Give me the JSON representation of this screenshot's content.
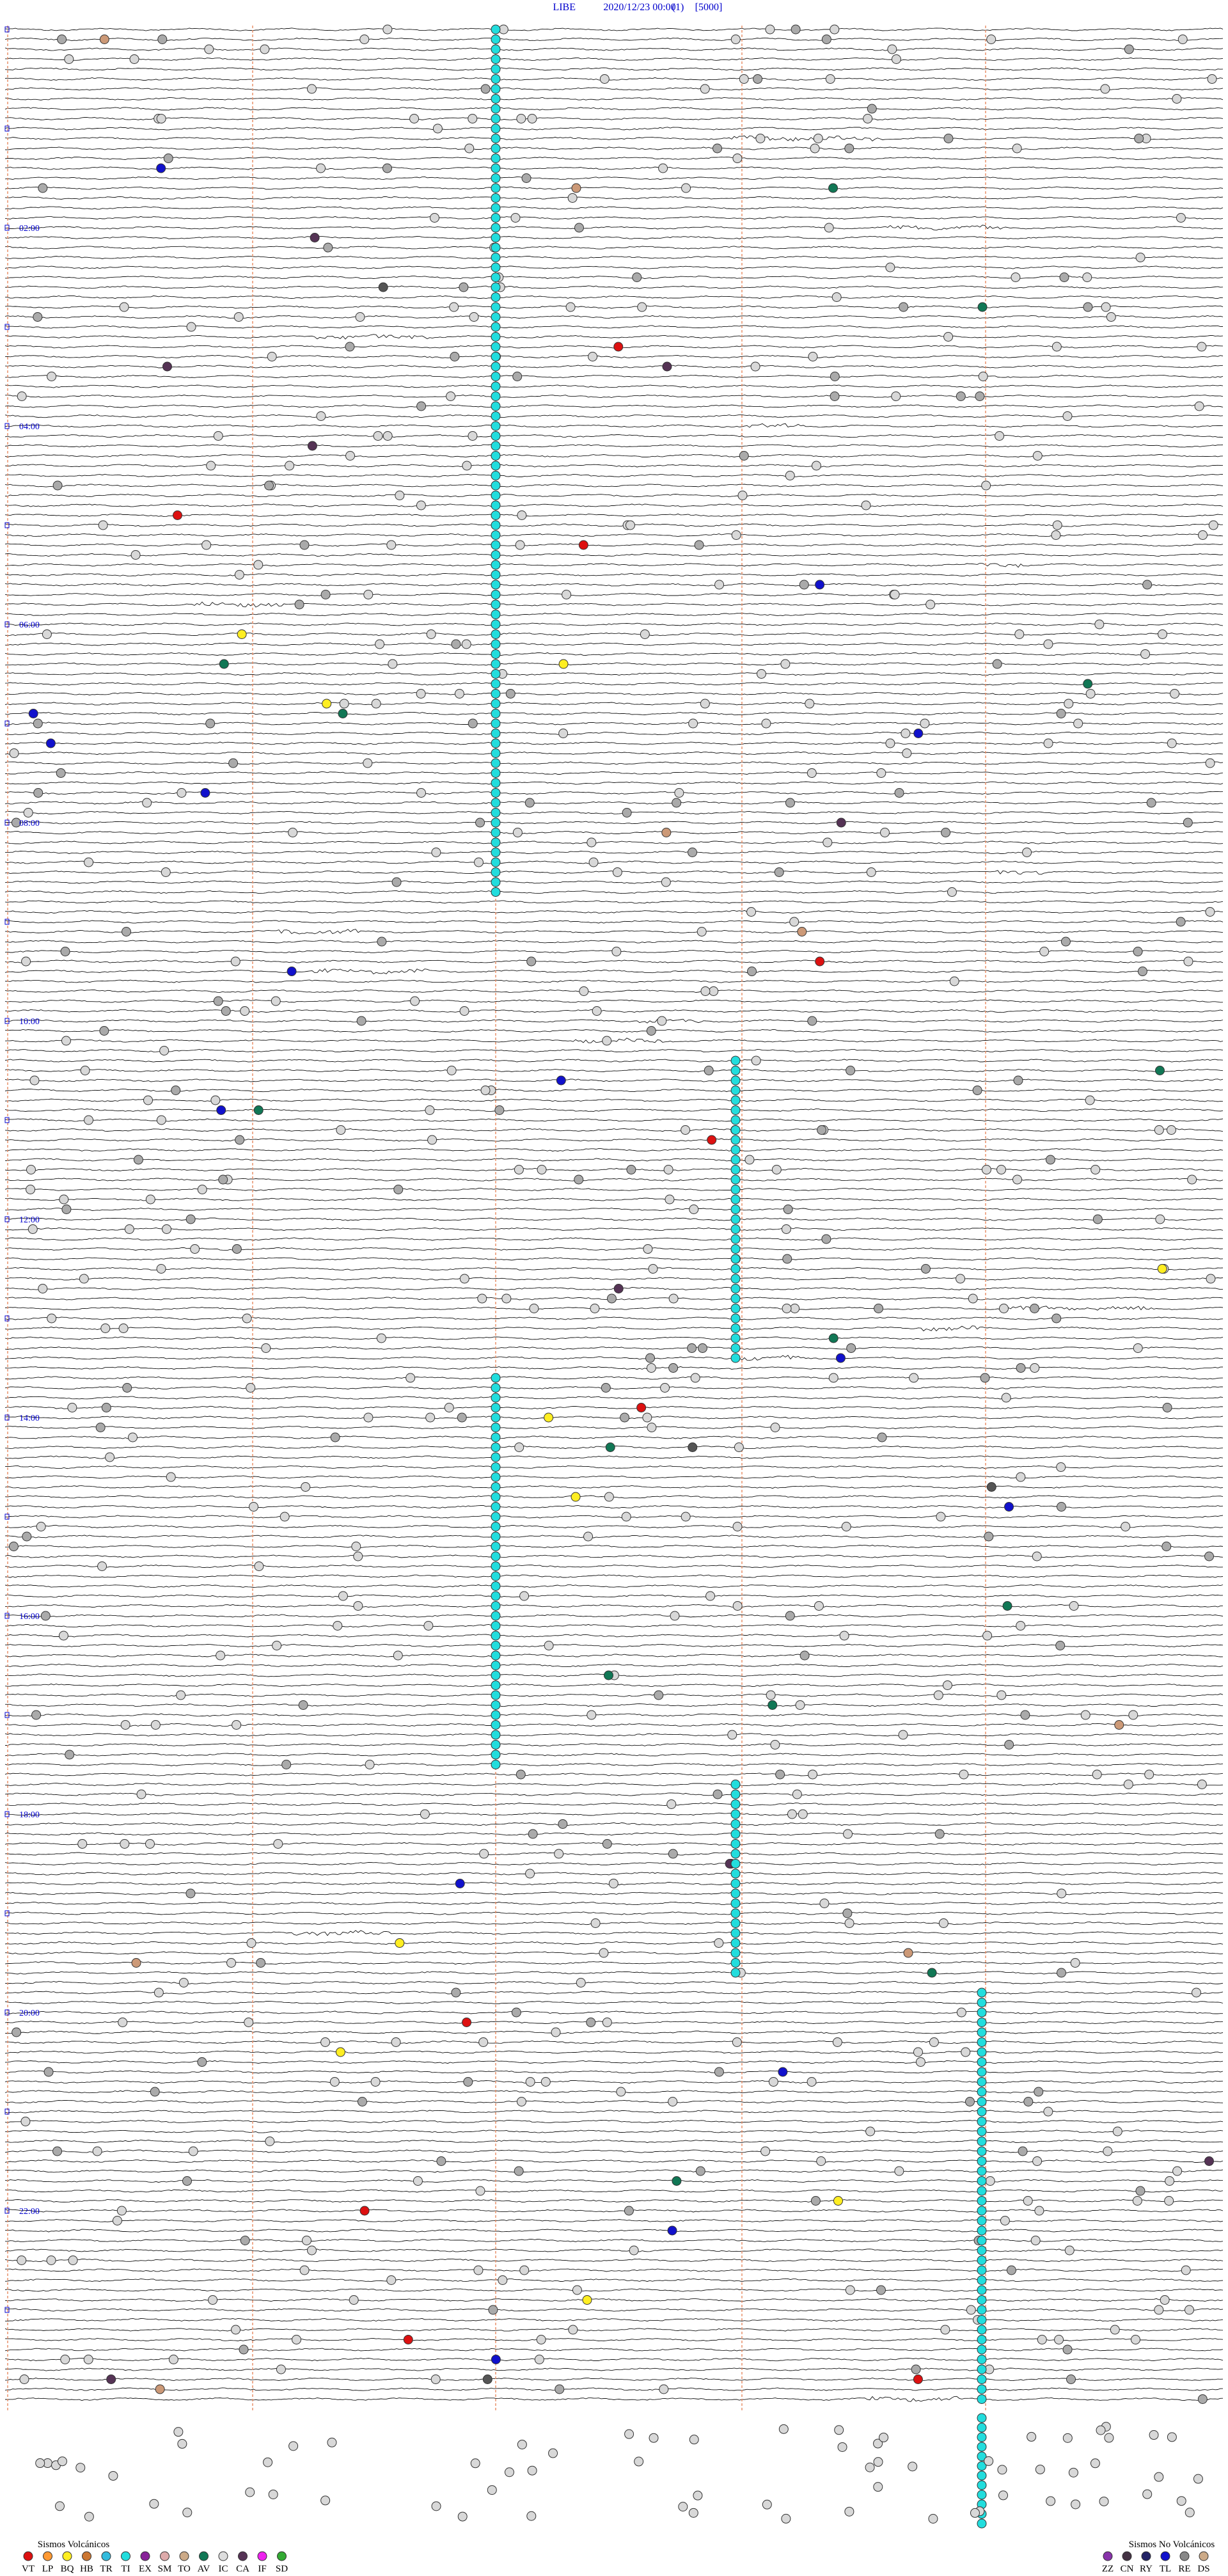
{
  "header": {
    "station": "LIBE",
    "datetime": "2020/12/23 00:00",
    "channel": "(1)",
    "scale": "[5000]"
  },
  "hour_labels": [
    "02:00",
    "04:00",
    "06:00",
    "08:00",
    "10:00",
    "12:00",
    "14:00",
    "16:00",
    "18:00",
    "20:00",
    "22:00"
  ],
  "legend": {
    "volcanic": {
      "title": "Sismos Volcánicos",
      "codes": [
        "VT",
        "LP",
        "BQ",
        "HB",
        "TR",
        "TI",
        "EX",
        "SM",
        "TO",
        "AV",
        "IC",
        "CA",
        "IF",
        "SD"
      ]
    },
    "non_volcanic": {
      "title": "Sismos No Volcánicos",
      "codes": [
        "ZZ",
        "CN",
        "RY",
        "TL",
        "RE",
        "DS"
      ]
    }
  }
}
